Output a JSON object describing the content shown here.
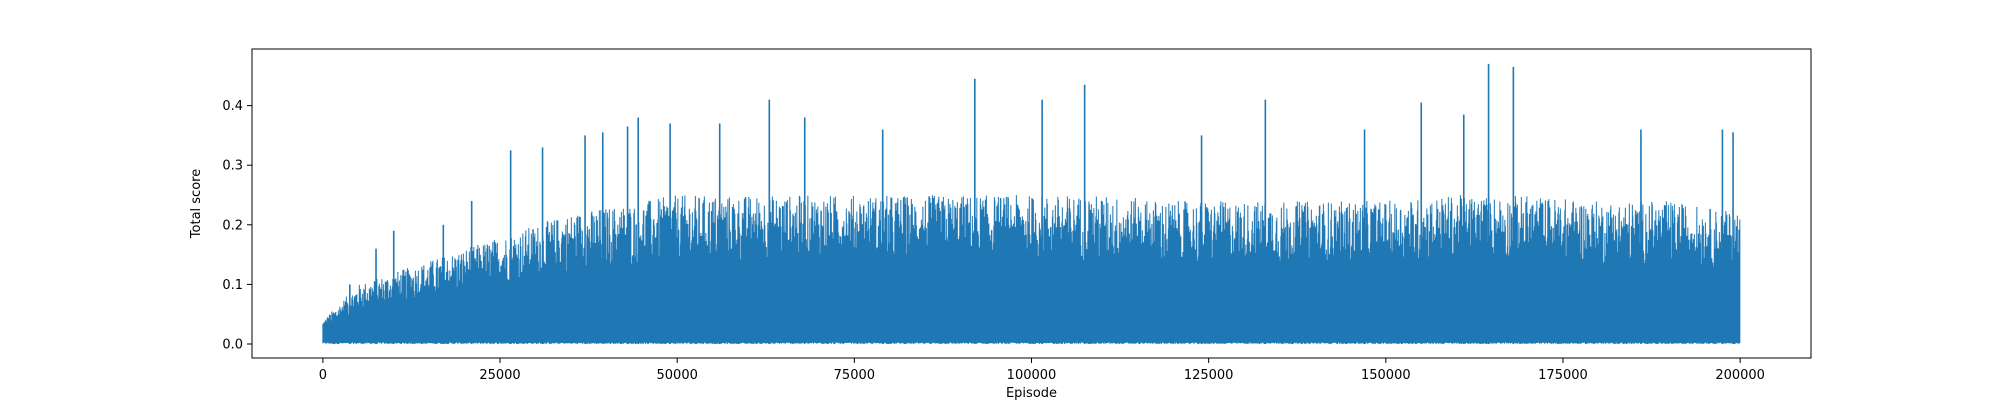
{
  "chart_data": {
    "type": "line",
    "xlabel": "Episode",
    "ylabel": "Total score",
    "xlim": [
      -10000,
      210000
    ],
    "ylim": [
      -0.0235,
      0.495
    ],
    "xticks": [
      0,
      25000,
      50000,
      75000,
      100000,
      125000,
      150000,
      175000,
      200000
    ],
    "yticks": [
      0.0,
      0.1,
      0.2,
      0.3,
      0.4
    ],
    "xtick_labels": [
      "0",
      "25000",
      "50000",
      "75000",
      "100000",
      "125000",
      "150000",
      "175000",
      "200000"
    ],
    "ytick_labels": [
      "0.0",
      "0.1",
      "0.2",
      "0.3",
      "0.4"
    ],
    "grid": false,
    "legend": "none",
    "series": [
      {
        "color": "#1f77b4",
        "episodes_total": 200000,
        "baseline_min": 0.0,
        "upper_envelope": {
          "x": [
            0,
            5000,
            10000,
            15000,
            20000,
            25000,
            30000,
            35000,
            40000,
            45000,
            50000,
            60000,
            70000,
            80000,
            90000,
            100000,
            110000,
            120000,
            130000,
            140000,
            150000,
            160000,
            170000,
            180000,
            190000,
            200000
          ],
          "y": [
            0.04,
            0.1,
            0.12,
            0.14,
            0.16,
            0.18,
            0.2,
            0.22,
            0.23,
            0.24,
            0.25,
            0.25,
            0.25,
            0.25,
            0.25,
            0.25,
            0.25,
            0.24,
            0.24,
            0.24,
            0.24,
            0.25,
            0.25,
            0.24,
            0.24,
            0.22
          ]
        },
        "peaks": [
          {
            "x": 1500,
            "y": 0.045
          },
          {
            "x": 3800,
            "y": 0.1
          },
          {
            "x": 7500,
            "y": 0.16
          },
          {
            "x": 10000,
            "y": 0.19
          },
          {
            "x": 17000,
            "y": 0.2
          },
          {
            "x": 21000,
            "y": 0.24
          },
          {
            "x": 26500,
            "y": 0.325
          },
          {
            "x": 31000,
            "y": 0.33
          },
          {
            "x": 37000,
            "y": 0.35
          },
          {
            "x": 39500,
            "y": 0.355
          },
          {
            "x": 43000,
            "y": 0.365
          },
          {
            "x": 44500,
            "y": 0.38
          },
          {
            "x": 49000,
            "y": 0.37
          },
          {
            "x": 56000,
            "y": 0.37
          },
          {
            "x": 63000,
            "y": 0.41
          },
          {
            "x": 68000,
            "y": 0.38
          },
          {
            "x": 79000,
            "y": 0.36
          },
          {
            "x": 92000,
            "y": 0.445
          },
          {
            "x": 101500,
            "y": 0.41
          },
          {
            "x": 107500,
            "y": 0.435
          },
          {
            "x": 124000,
            "y": 0.35
          },
          {
            "x": 133000,
            "y": 0.41
          },
          {
            "x": 147000,
            "y": 0.36
          },
          {
            "x": 155000,
            "y": 0.405
          },
          {
            "x": 161000,
            "y": 0.385
          },
          {
            "x": 164500,
            "y": 0.47
          },
          {
            "x": 168000,
            "y": 0.465
          },
          {
            "x": 186000,
            "y": 0.36
          },
          {
            "x": 197500,
            "y": 0.36
          },
          {
            "x": 199000,
            "y": 0.355
          }
        ]
      }
    ]
  }
}
